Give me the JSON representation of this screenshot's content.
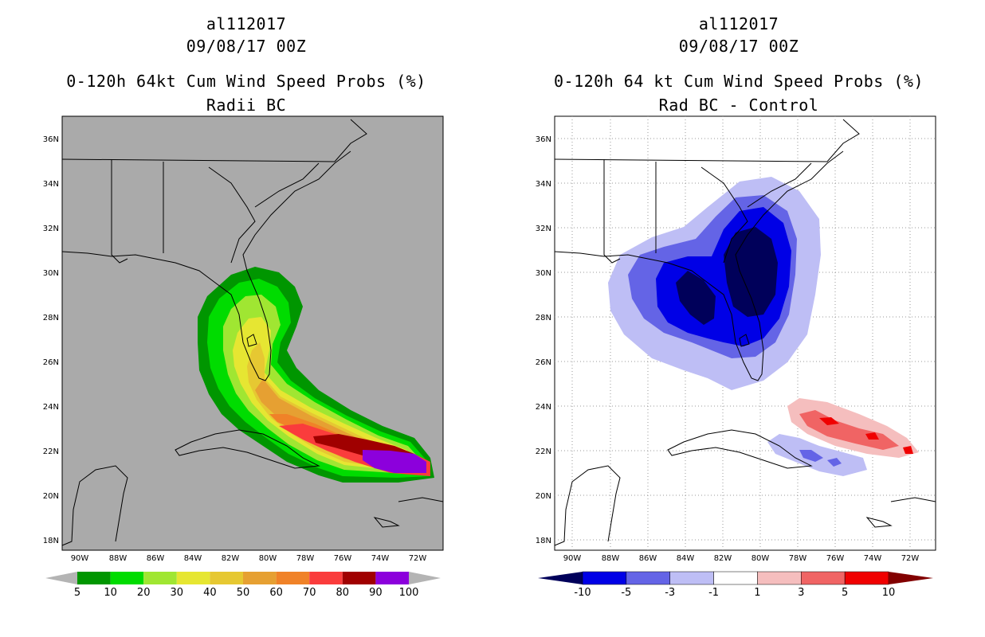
{
  "left": {
    "title_line1": "al112017",
    "title_line2": "09/08/17 00Z",
    "title_line3": "0-120h 64kt Cum Wind Speed Probs (%)",
    "title_line4": "Radii BC",
    "lat_labels": [
      "36N",
      "34N",
      "32N",
      "30N",
      "28N",
      "26N",
      "24N",
      "22N",
      "20N",
      "18N"
    ],
    "lon_labels": [
      "90W",
      "88W",
      "86W",
      "84W",
      "82W",
      "80W",
      "78W",
      "76W",
      "74W",
      "72W"
    ],
    "colorbar": {
      "colors": [
        "#b4b4b4",
        "#009600",
        "#00dc00",
        "#a0e632",
        "#e6e632",
        "#e6c832",
        "#e6a032",
        "#f08228",
        "#fa3c3c",
        "#a00000",
        "#8c00dc",
        "#b4b4b4"
      ],
      "labels": [
        "5",
        "10",
        "20",
        "30",
        "40",
        "50",
        "60",
        "70",
        "80",
        "90",
        "100"
      ]
    },
    "background_color": "#aaaaaa"
  },
  "right": {
    "title_line1": "al112017",
    "title_line2": "09/08/17 00Z",
    "title_line3": "0-120h 64 kt Cum Wind Speed Probs (%)",
    "title_line4": "Rad BC - Control",
    "lat_labels": [
      "36N",
      "34N",
      "32N",
      "30N",
      "28N",
      "26N",
      "24N",
      "22N",
      "20N",
      "18N"
    ],
    "lon_labels": [
      "90W",
      "88W",
      "86W",
      "84W",
      "82W",
      "80W",
      "78W",
      "76W",
      "74W",
      "72W"
    ],
    "colorbar": {
      "colors": [
        "#00005a",
        "#0000e6",
        "#6464e6",
        "#bebef5",
        "#ffffff",
        "#f5bebe",
        "#f06464",
        "#f00000",
        "#820000"
      ],
      "labels": [
        "-10",
        "-5",
        "-3",
        "-1",
        "1",
        "3",
        "5",
        "10"
      ]
    }
  }
}
